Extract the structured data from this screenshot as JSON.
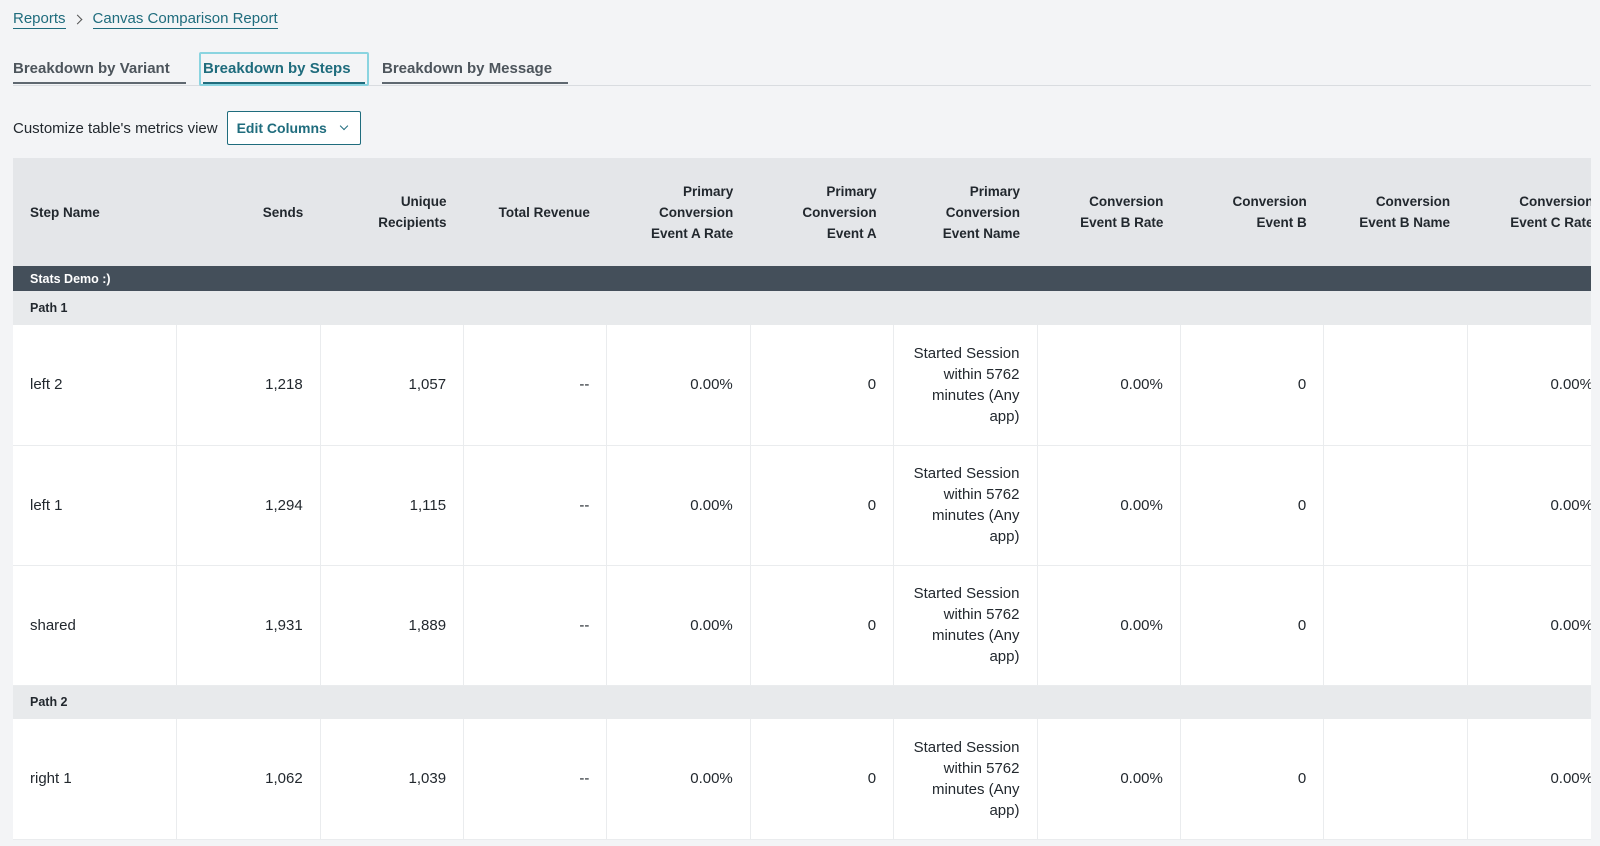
{
  "breadcrumb": {
    "root": "Reports",
    "current": "Canvas Comparison Report"
  },
  "tabs": [
    {
      "label": "Breakdown by Variant",
      "active": false
    },
    {
      "label": "Breakdown by Steps",
      "active": true
    },
    {
      "label": "Breakdown by Message",
      "active": false
    }
  ],
  "customize": {
    "label": "Customize table's metrics view",
    "button": "Edit Columns"
  },
  "table": {
    "columns": [
      "Step Name",
      "Sends",
      "Unique Recipients",
      "Total Revenue",
      "Primary Conversion Event A Rate",
      "Primary Conversion Event A",
      "Primary Conversion Event Name",
      "Conversion Event B Rate",
      "Conversion Event B",
      "Conversion Event B Name",
      "Conversion Event C Rate"
    ],
    "group": "Stats Demo :)",
    "paths": [
      {
        "name": "Path 1",
        "rows": [
          [
            "left 2",
            "1,218",
            "1,057",
            "--",
            "0.00%",
            "0",
            "Started Session within 5762 minutes (Any app)",
            "0.00%",
            "0",
            "",
            "0.00%"
          ],
          [
            "left 1",
            "1,294",
            "1,115",
            "--",
            "0.00%",
            "0",
            "Started Session within 5762 minutes (Any app)",
            "0.00%",
            "0",
            "",
            "0.00%"
          ],
          [
            "shared",
            "1,931",
            "1,889",
            "--",
            "0.00%",
            "0",
            "Started Session within 5762 minutes (Any app)",
            "0.00%",
            "0",
            "",
            "0.00%"
          ]
        ]
      },
      {
        "name": "Path 2",
        "rows": [
          [
            "right 1",
            "1,062",
            "1,039",
            "--",
            "0.00%",
            "0",
            "Started Session within 5762 minutes (Any app)",
            "0.00%",
            "0",
            "",
            "0.00%"
          ]
        ]
      }
    ]
  }
}
